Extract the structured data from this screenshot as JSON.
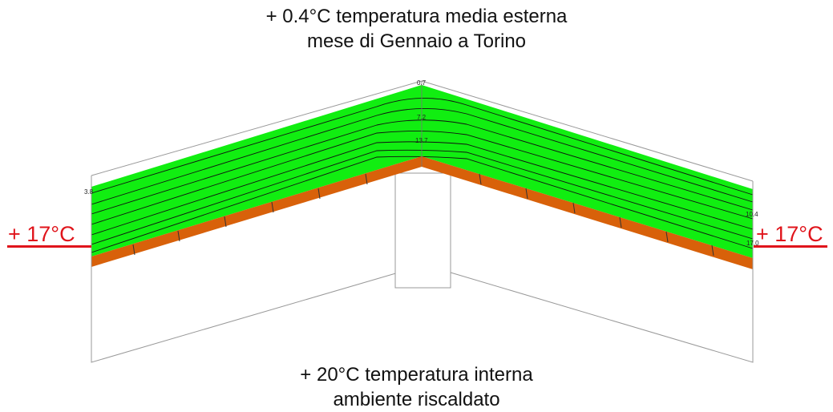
{
  "top_caption": {
    "line1": "+ 0.4°C temperatura media esterna",
    "line2": "mese di Gennaio a Torino"
  },
  "bottom_caption": {
    "line1": "+ 20°C temperatura interna",
    "line2": "ambiente riscaldato"
  },
  "left_label": "+ 17°C",
  "right_label": "+ 17°C",
  "isotherm_labels": {
    "ridge_top": "0.7",
    "ridge_mid": "7.2",
    "ridge_low": "13.7",
    "left_edge": "3.8",
    "right_upper": "10.4",
    "right_lower": "17.0"
  },
  "colors": {
    "insulation": "#11ee11",
    "tiles": "#d8610a",
    "label_red": "#e0141b",
    "outline": "#999999"
  }
}
